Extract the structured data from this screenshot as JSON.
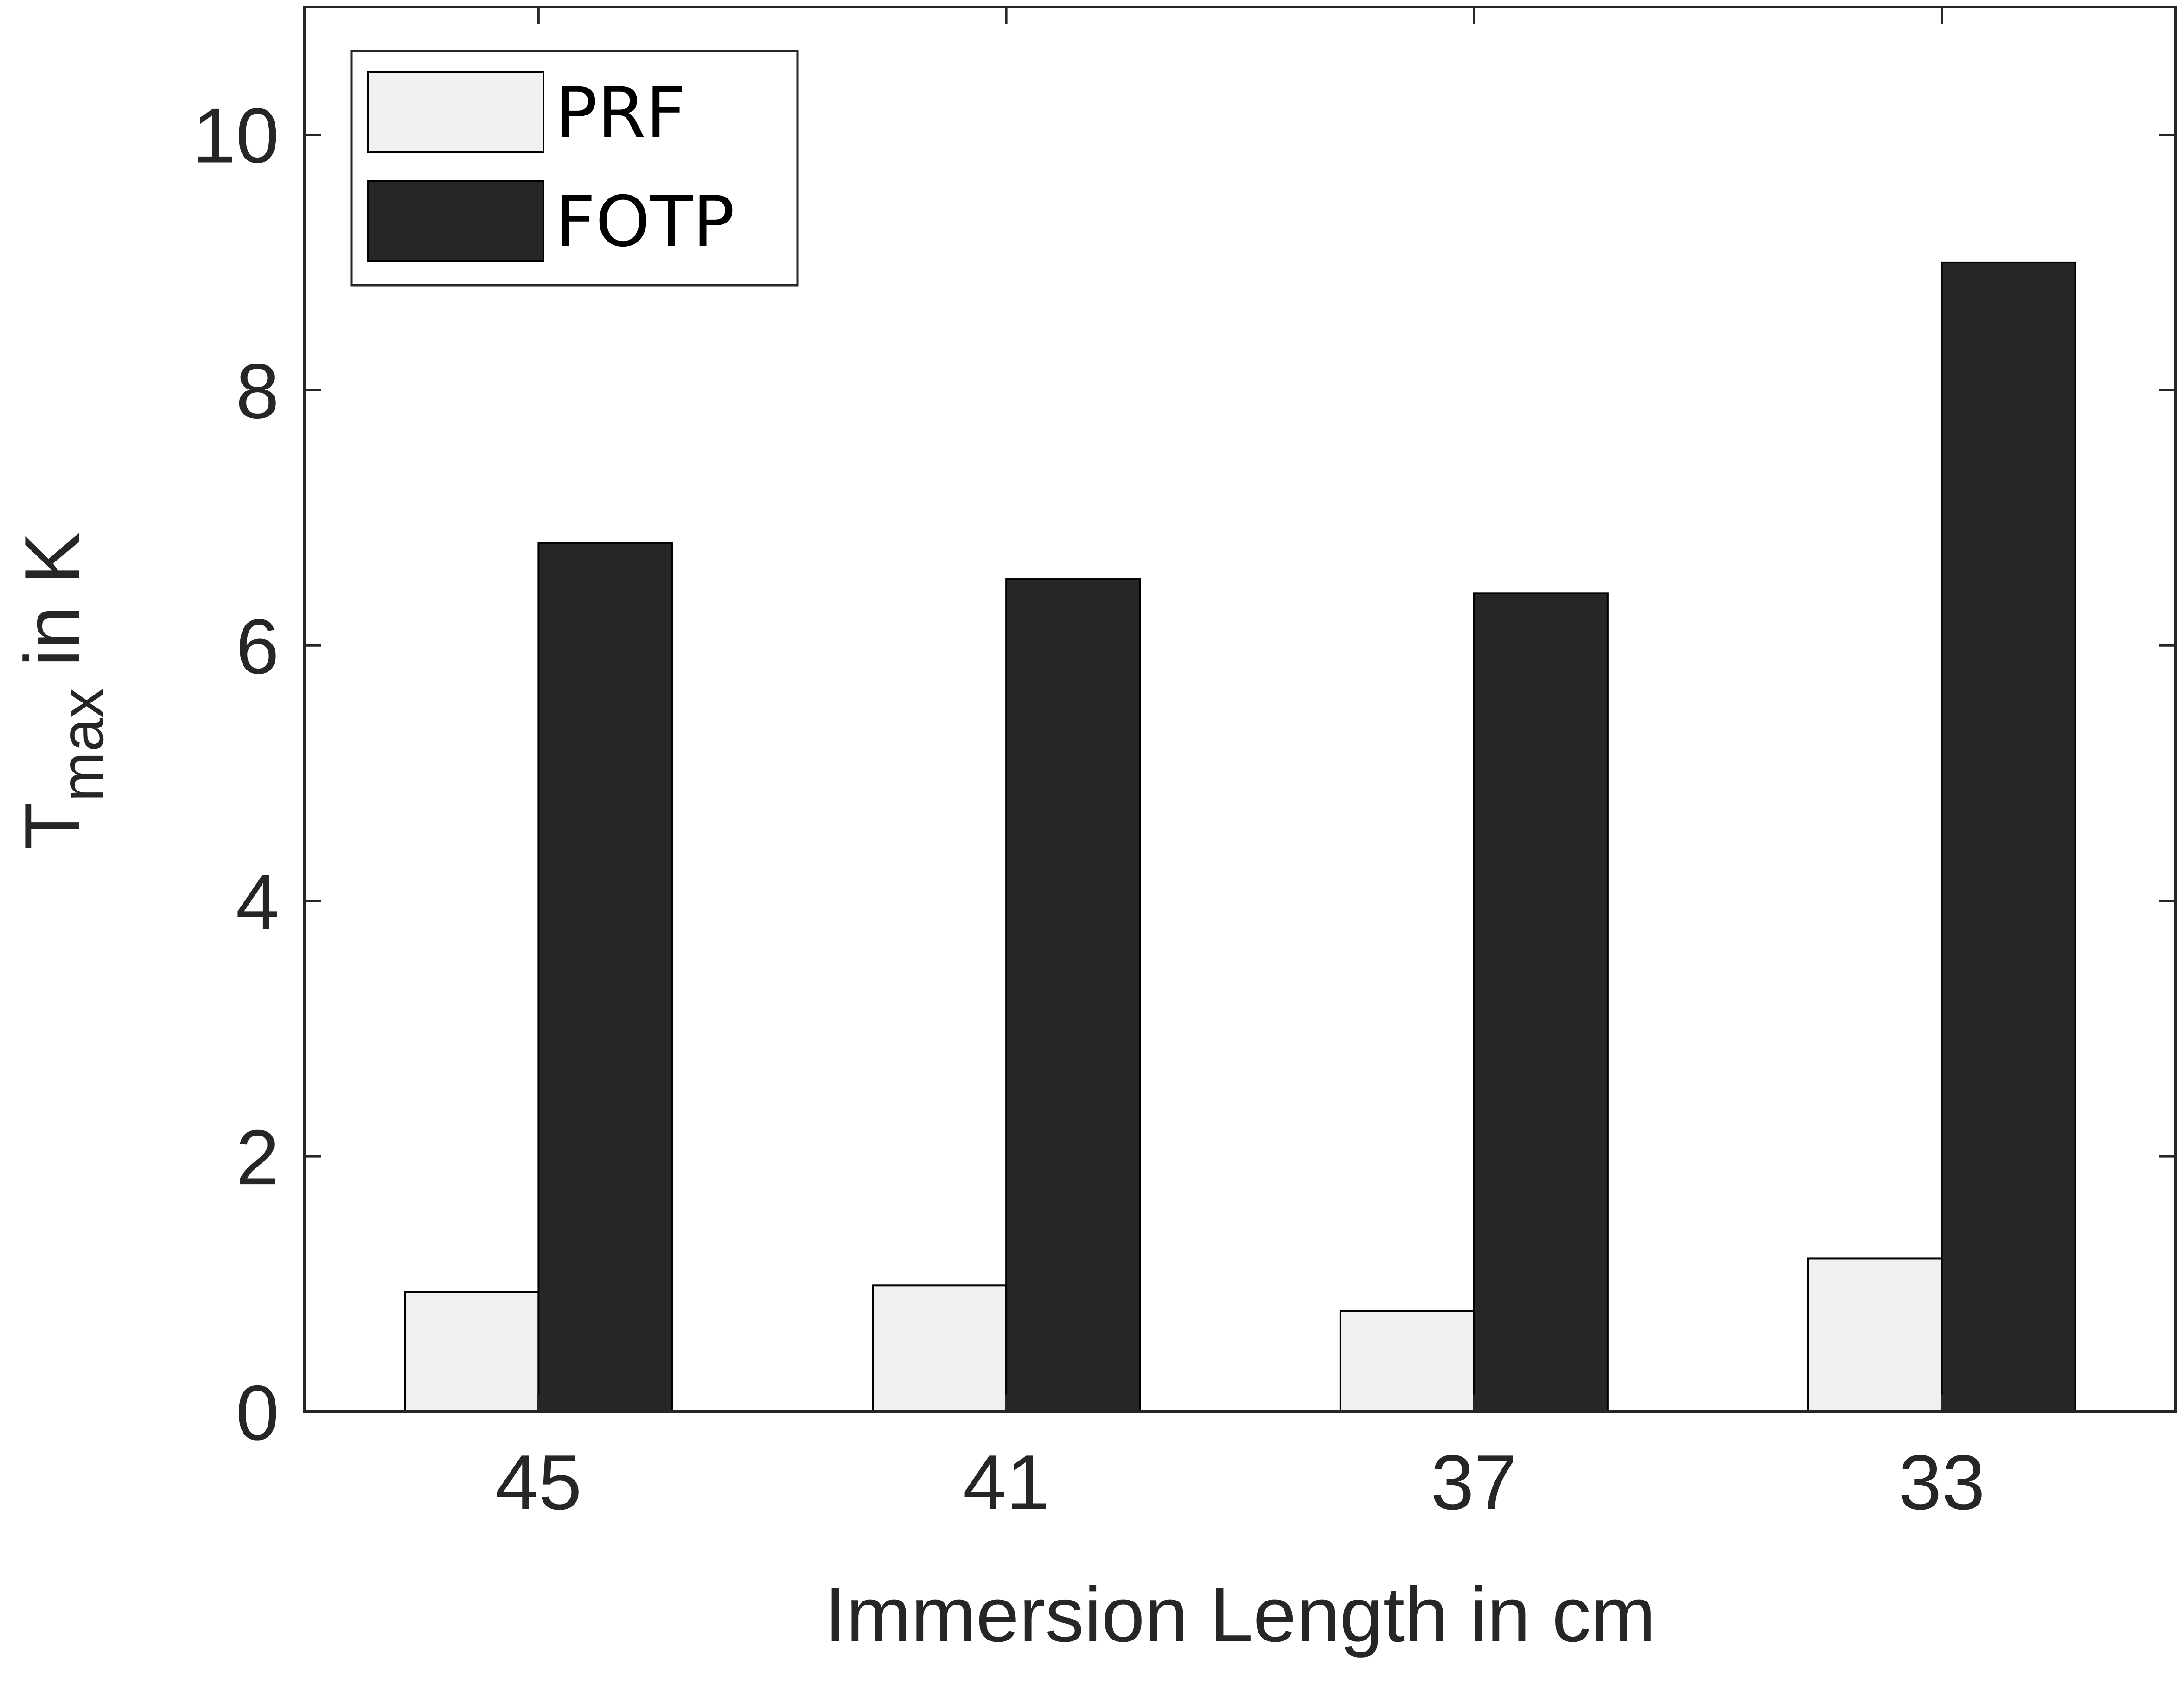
{
  "chart_data": {
    "type": "bar",
    "categories": [
      "45",
      "41",
      "37",
      "33"
    ],
    "series": [
      {
        "name": "PRF",
        "values": [
          0.94,
          0.99,
          0.79,
          1.2
        ],
        "color": "#f0f0f0"
      },
      {
        "name": "FOTP",
        "values": [
          6.8,
          6.52,
          6.41,
          9.0
        ],
        "color": "#262626"
      }
    ],
    "title": "",
    "xlabel": "Immersion Length in cm",
    "ylabel_main": "T",
    "ylabel_sub": "max",
    "ylabel_rest": " in K",
    "ylim": [
      0,
      11
    ],
    "yticks": [
      0,
      2,
      4,
      6,
      8,
      10
    ],
    "legend_position": "top-left",
    "grid": false
  }
}
